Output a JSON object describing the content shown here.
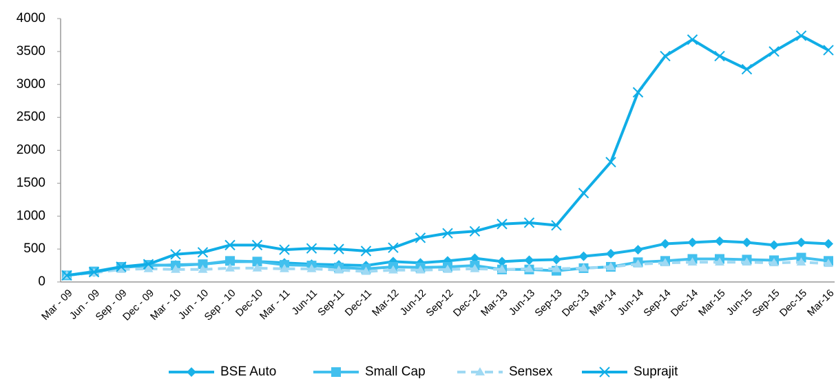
{
  "chart_data": {
    "type": "line",
    "categories": [
      "Mar - 09",
      "Jun - 09",
      "Sep - 09",
      "Dec - 09",
      "Mar - 10",
      "Jun - 10",
      "Sep - 10",
      "Dec-10",
      "Mar - 11",
      "Jun-11",
      "Sep-11",
      "Dec-11",
      "Mar-12",
      "Jun-12",
      "Sep-12",
      "Dec-12",
      "Mar-13",
      "Jun-13",
      "Sep-13",
      "Dec-13",
      "Mar-14",
      "Jun-14",
      "Sep-14",
      "Dec-14",
      "Mar-15",
      "Jun-15",
      "Sep-15",
      "Dec-15",
      "Mar-16"
    ],
    "series": [
      {
        "name": "BSE Auto",
        "color": "#1ab2e8",
        "marker": "diamond",
        "dashed": false,
        "values": [
          100,
          150,
          220,
          250,
          260,
          270,
          310,
          310,
          290,
          270,
          260,
          250,
          310,
          290,
          320,
          360,
          310,
          330,
          340,
          390,
          430,
          490,
          580,
          600,
          620,
          600,
          560,
          600,
          580
        ]
      },
      {
        "name": "Small Cap",
        "color": "#42c0ee",
        "marker": "square",
        "dashed": false,
        "values": [
          100,
          160,
          230,
          260,
          250,
          270,
          320,
          310,
          260,
          250,
          220,
          200,
          230,
          220,
          230,
          250,
          190,
          190,
          170,
          210,
          230,
          300,
          320,
          350,
          350,
          340,
          330,
          370,
          320
        ]
      },
      {
        "name": "Sensex",
        "color": "#9fd9f3",
        "marker": "triangle",
        "dashed": true,
        "values": [
          100,
          140,
          190,
          200,
          190,
          190,
          210,
          210,
          200,
          200,
          180,
          160,
          180,
          180,
          190,
          200,
          190,
          200,
          200,
          210,
          230,
          270,
          290,
          300,
          300,
          300,
          290,
          300,
          280
        ]
      },
      {
        "name": "Suprajit",
        "color": "#10ade6",
        "marker": "x",
        "dashed": false,
        "values": [
          100,
          150,
          230,
          270,
          420,
          450,
          560,
          560,
          490,
          510,
          500,
          470,
          520,
          670,
          740,
          770,
          880,
          900,
          860,
          1350,
          1820,
          2880,
          3430,
          3680,
          3430,
          3230,
          3500,
          3740,
          3520
        ]
      }
    ],
    "ylim": [
      0,
      4000
    ],
    "yticks": [
      0,
      500,
      1000,
      1500,
      2000,
      2500,
      3000,
      3500,
      4000
    ],
    "grid": false,
    "legend": "bottom"
  }
}
